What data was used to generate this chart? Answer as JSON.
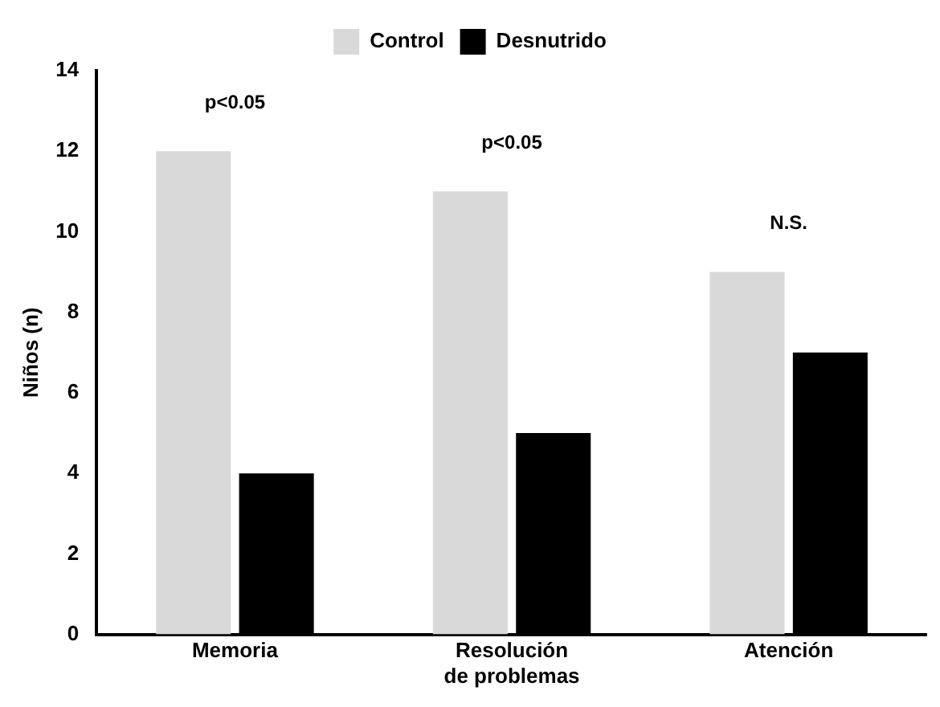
{
  "chart_data": {
    "type": "bar",
    "ylabel": "Niños (n)",
    "categories": [
      "Memoria",
      "Resolución de problemas",
      "Atención"
    ],
    "series": [
      {
        "name": "Control",
        "color": "#d9d9d9",
        "values": [
          12,
          11,
          9
        ]
      },
      {
        "name": "Desnutrido",
        "color": "#000000",
        "values": [
          4,
          5,
          7
        ]
      }
    ],
    "ylim": [
      0,
      14
    ],
    "yticks": [
      0,
      2,
      4,
      6,
      8,
      10,
      12,
      14
    ],
    "grid": false,
    "legend": "top",
    "annotations": [
      "p<0.05",
      "p<0.05",
      "N.S."
    ]
  }
}
